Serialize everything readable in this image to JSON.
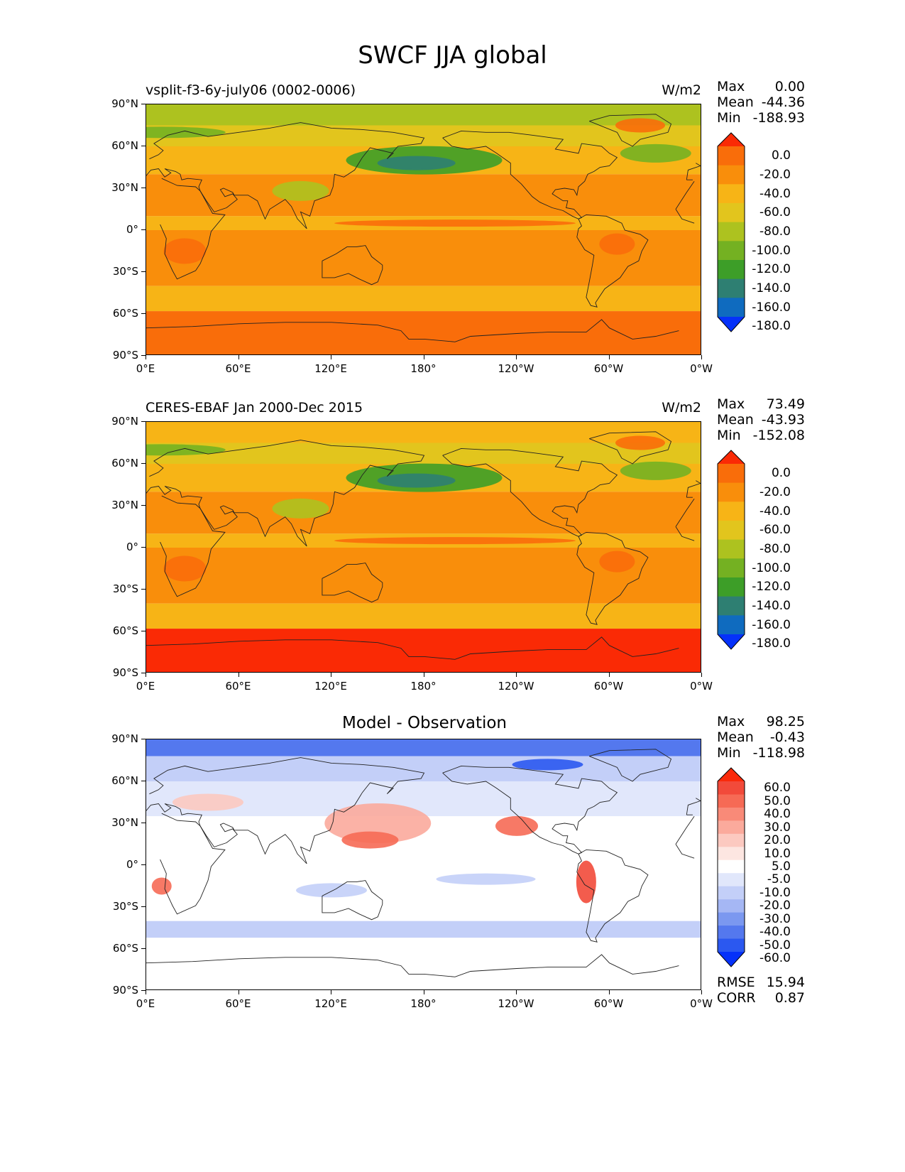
{
  "title": "SWCF JJA global",
  "panels": [
    {
      "id": "model",
      "title_left": "vsplit-f3-6y-july06 (0002-0006)",
      "title_center": "",
      "units": "W/m2",
      "stats": [
        {
          "label": "Max",
          "value": "0.00"
        },
        {
          "label": "Mean",
          "value": "-44.36"
        },
        {
          "label": "Min",
          "value": "-188.93"
        }
      ],
      "colorbar": {
        "labels": [
          "0.0",
          "-20.0",
          "-40.0",
          "-60.0",
          "-80.0",
          "-100.0",
          "-120.0",
          "-140.0",
          "-160.0",
          "-180.0"
        ],
        "colors": [
          "#fa2a05",
          "#f96d0a",
          "#f98e0b",
          "#f7b416",
          "#e2c51d",
          "#adc21f",
          "#74b122",
          "#3d9e28",
          "#2e7f72",
          "#0f6bbf",
          "#0531f9"
        ]
      }
    },
    {
      "id": "observation",
      "title_left": "CERES-EBAF Jan 2000-Dec 2015",
      "title_center": "",
      "units": "W/m2",
      "stats": [
        {
          "label": "Max",
          "value": "73.49"
        },
        {
          "label": "Mean",
          "value": "-43.93"
        },
        {
          "label": "Min",
          "value": "-152.08"
        }
      ],
      "colorbar": {
        "labels": [
          "0.0",
          "-20.0",
          "-40.0",
          "-60.0",
          "-80.0",
          "-100.0",
          "-120.0",
          "-140.0",
          "-160.0",
          "-180.0"
        ],
        "colors": [
          "#fa2a05",
          "#f96d0a",
          "#f98e0b",
          "#f7b416",
          "#e2c51d",
          "#adc21f",
          "#74b122",
          "#3d9e28",
          "#2e7f72",
          "#0f6bbf",
          "#0531f9"
        ]
      }
    },
    {
      "id": "difference",
      "title_left": "",
      "title_center": "Model - Observation",
      "units": "",
      "stats": [
        {
          "label": "Max",
          "value": "98.25"
        },
        {
          "label": "Mean",
          "value": "-0.43"
        },
        {
          "label": "Min",
          "value": "-118.98"
        }
      ],
      "extra_stats": [
        {
          "label": "RMSE",
          "value": "15.94"
        },
        {
          "label": "CORR",
          "value": "0.87"
        }
      ],
      "colorbar": {
        "labels": [
          "60.0",
          "50.0",
          "40.0",
          "30.0",
          "20.0",
          "10.0",
          "5.0",
          "-5.0",
          "-10.0",
          "-20.0",
          "-30.0",
          "-40.0",
          "-50.0",
          "-60.0"
        ],
        "colors": [
          "#fa2a0a",
          "#f24a3a",
          "#f66a55",
          "#f98a78",
          "#fbaa9c",
          "#fcc9c0",
          "#fde6e1",
          "#ffffff",
          "#e1e7fb",
          "#c3cff8",
          "#a5b7f4",
          "#7b98f0",
          "#5478ee",
          "#2b58f0",
          "#0531f9"
        ]
      }
    }
  ],
  "axes": {
    "lat_ticks": [
      "90°N",
      "60°N",
      "30°N",
      "0°",
      "30°S",
      "60°S",
      "90°S"
    ],
    "lon_ticks": [
      "0°E",
      "60°E",
      "120°E",
      "180°",
      "120°W",
      "60°W",
      "0°W"
    ]
  }
}
